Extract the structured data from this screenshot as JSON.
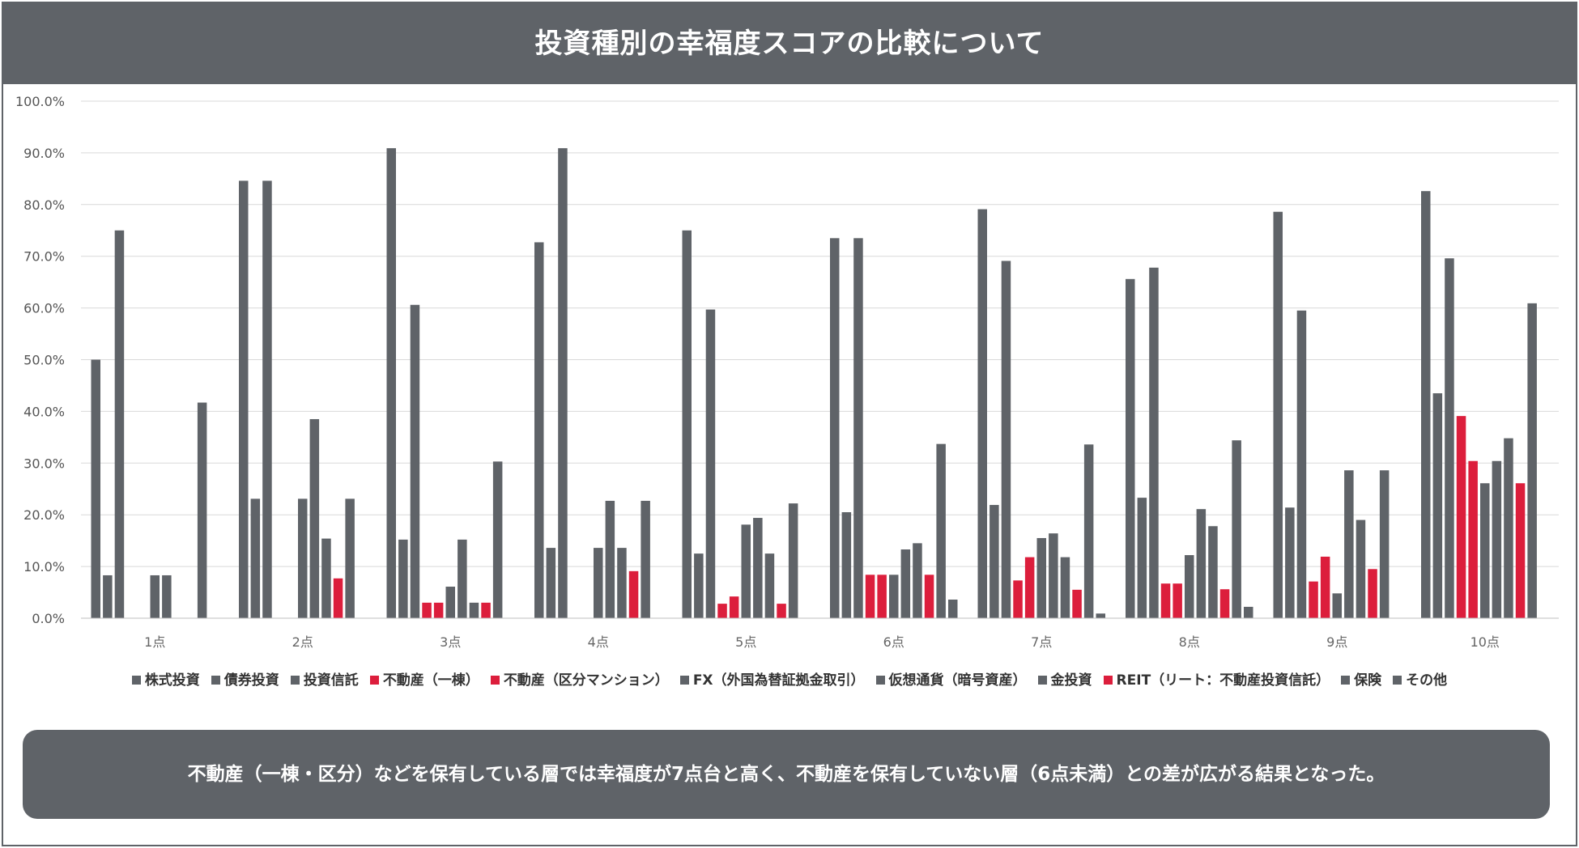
{
  "title": "投資種別の幸福度スコアの比較について",
  "caption": "不動産（一棟・区分）などを保有している層では幸福度が7点台と高く、不動産を保有していない層（6点未満）との差が広がる結果となった。",
  "colors": {
    "gray": "#5f6368",
    "red": "#dc1e3c",
    "grid": "#d9d9d9"
  },
  "chart_data": {
    "type": "bar",
    "title": "投資種別の幸福度スコアの比較について",
    "xlabel": "",
    "ylabel": "",
    "ylim": [
      0,
      100
    ],
    "y_ticks": [
      "0.0%",
      "10.0%",
      "20.0%",
      "30.0%",
      "40.0%",
      "50.0%",
      "60.0%",
      "70.0%",
      "80.0%",
      "90.0%",
      "100.0%"
    ],
    "categories": [
      "1点",
      "2点",
      "3点",
      "4点",
      "5点",
      "6点",
      "7点",
      "8点",
      "9点",
      "10点"
    ],
    "legend_position": "bottom",
    "grid": true,
    "series": [
      {
        "name": "株式投資",
        "color": "#5f6368",
        "values": [
          50.0,
          84.6,
          90.9,
          72.7,
          75.0,
          73.5,
          79.1,
          65.6,
          78.6,
          82.6
        ]
      },
      {
        "name": "債券投資",
        "color": "#5f6368",
        "values": [
          8.3,
          23.1,
          15.2,
          13.6,
          12.5,
          20.5,
          21.9,
          23.3,
          21.4,
          43.5
        ]
      },
      {
        "name": "投資信託",
        "color": "#5f6368",
        "values": [
          75.0,
          84.6,
          60.6,
          90.9,
          59.7,
          73.5,
          69.1,
          67.8,
          59.5,
          69.6
        ]
      },
      {
        "name": "不動産（一棟）",
        "color": "#dc1e3c",
        "values": [
          0,
          0,
          3.0,
          0,
          2.8,
          8.4,
          7.3,
          6.7,
          7.1,
          39.1
        ]
      },
      {
        "name": "不動産（区分マンション）",
        "color": "#dc1e3c",
        "values": [
          0,
          0,
          3.0,
          0,
          4.2,
          8.4,
          11.8,
          6.7,
          11.9,
          30.4
        ]
      },
      {
        "name": "FX（外国為替証拠金取引）",
        "color": "#5f6368",
        "values": [
          8.3,
          23.1,
          6.1,
          13.6,
          18.1,
          8.4,
          15.5,
          12.2,
          4.8,
          26.1
        ]
      },
      {
        "name": "仮想通貨（暗号資産）",
        "color": "#5f6368",
        "values": [
          8.3,
          38.5,
          15.2,
          22.7,
          19.4,
          13.3,
          16.4,
          21.1,
          28.6,
          30.4
        ]
      },
      {
        "name": "金投資",
        "color": "#5f6368",
        "values": [
          0,
          15.4,
          3.0,
          13.6,
          12.5,
          14.5,
          11.8,
          17.8,
          19.0,
          34.8
        ]
      },
      {
        "name": "REIT（リート：不動産投資信託）",
        "color": "#dc1e3c",
        "values": [
          0,
          7.7,
          3.0,
          9.1,
          2.8,
          8.4,
          5.5,
          5.6,
          9.5,
          26.1
        ]
      },
      {
        "name": "保険",
        "color": "#5f6368",
        "values": [
          41.7,
          23.1,
          30.3,
          22.7,
          22.2,
          33.7,
          33.6,
          34.4,
          28.6,
          60.9
        ]
      },
      {
        "name": "その他",
        "color": "#5f6368",
        "values": [
          0,
          0,
          0,
          0,
          0,
          3.6,
          0.9,
          2.2,
          0,
          0
        ]
      }
    ]
  }
}
